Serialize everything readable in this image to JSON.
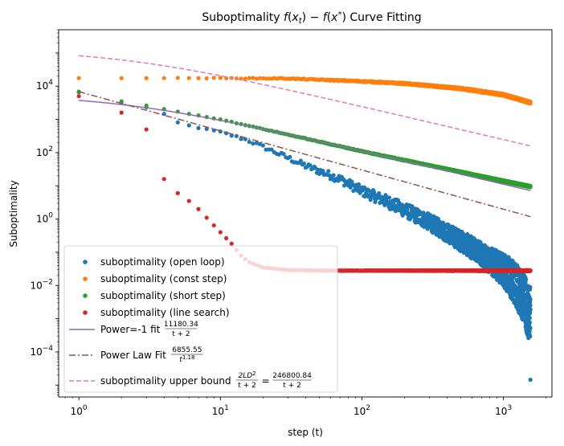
{
  "chart_data": {
    "type": "scatter",
    "title": "Suboptimality f(x_t) − f(x*) Curve Fitting",
    "title_parts": {
      "prefix": "Suboptimality ",
      "f1": "f",
      "x1": "x",
      "t1": "t",
      "minus": "− ",
      "f2": "f",
      "x2": "x",
      "star": "*",
      "suffix": " Curve Fitting"
    },
    "xlabel": "step (t)",
    "ylabel": "Suboptimality",
    "xscale": "log",
    "yscale": "log",
    "xlim": [
      0.72,
      2200
    ],
    "ylim": [
      4.4e-06,
      500000
    ],
    "grid": false,
    "legend_position": "lower-left",
    "x_ticks": [
      {
        "value": 1,
        "base": "10",
        "exp": "0"
      },
      {
        "value": 10,
        "base": "10",
        "exp": "1"
      },
      {
        "value": 100,
        "base": "10",
        "exp": "2"
      },
      {
        "value": 1000,
        "base": "10",
        "exp": "3"
      }
    ],
    "y_ticks": [
      {
        "value": 0.0001,
        "base": "10",
        "exp": "−4"
      },
      {
        "value": 0.01,
        "base": "10",
        "exp": "−2"
      },
      {
        "value": 1,
        "base": "10",
        "exp": "0"
      },
      {
        "value": 100,
        "base": "10",
        "exp": "2"
      },
      {
        "value": 10000,
        "base": "10",
        "exp": "4"
      }
    ],
    "t_max": 1550,
    "series": [
      {
        "key": "open",
        "name": "suboptimality (open loop)",
        "marker": "dot",
        "color": "#1f77b4",
        "anchors": [
          [
            1,
            6500
          ],
          [
            2,
            3200
          ],
          [
            3,
            2300
          ],
          [
            4,
            1400
          ],
          [
            5,
            800
          ],
          [
            6,
            650
          ],
          [
            8,
            500
          ],
          [
            10,
            420
          ],
          [
            15,
            250
          ],
          [
            20,
            150
          ],
          [
            30,
            70
          ],
          [
            40,
            40
          ],
          [
            50,
            28
          ],
          [
            70,
            16
          ],
          [
            100,
            7
          ],
          [
            150,
            3.4
          ],
          [
            200,
            1.9
          ],
          [
            300,
            0.8
          ],
          [
            500,
            0.22
          ],
          [
            700,
            0.09
          ],
          [
            1000,
            0.03
          ],
          [
            1200,
            0.012
          ],
          [
            1400,
            0.004
          ],
          [
            1500,
            0.0015
          ]
        ],
        "spread": [
          [
            10,
            0.02
          ],
          [
            30,
            0.08
          ],
          [
            100,
            0.15
          ],
          [
            300,
            0.25
          ],
          [
            700,
            0.35
          ],
          [
            1000,
            0.5
          ],
          [
            1500,
            0.8
          ]
        ],
        "outlier": [
          1550,
          1.45e-05
        ]
      },
      {
        "key": "const",
        "name": "suboptimality (const step)",
        "marker": "dot",
        "color": "#ff7f0e",
        "anchors": [
          [
            1,
            17500
          ],
          [
            3,
            17500
          ],
          [
            10,
            17500
          ],
          [
            30,
            17000
          ],
          [
            100,
            14000
          ],
          [
            200,
            12000
          ],
          [
            500,
            8500
          ],
          [
            1000,
            5500
          ],
          [
            1550,
            3200
          ]
        ],
        "spread": [
          [
            1,
            0.0
          ],
          [
            1550,
            0.03
          ]
        ]
      },
      {
        "key": "short",
        "name": "suboptimality (short step)",
        "marker": "dot",
        "color": "#2ca02c",
        "anchors": [
          [
            1,
            6800
          ],
          [
            2,
            3500
          ],
          [
            3,
            2600
          ],
          [
            5,
            1700
          ],
          [
            10,
            1000
          ],
          [
            100,
            110
          ],
          [
            1000,
            14
          ],
          [
            1550,
            9.5
          ]
        ],
        "spread": [
          [
            1,
            0.0
          ],
          [
            1550,
            0.02
          ]
        ]
      },
      {
        "key": "line",
        "name": "suboptimality (line search)",
        "marker": "dot",
        "color": "#d62728",
        "anchors": [
          [
            1,
            5000
          ],
          [
            2,
            1600
          ],
          [
            3,
            500
          ],
          [
            4,
            16
          ],
          [
            5,
            6
          ],
          [
            6,
            3.5
          ],
          [
            7,
            2
          ],
          [
            8,
            1.1
          ],
          [
            9,
            0.65
          ],
          [
            10,
            0.4
          ],
          [
            12,
            0.18
          ],
          [
            14,
            0.08
          ],
          [
            16,
            0.05
          ],
          [
            20,
            0.035
          ],
          [
            30,
            0.029
          ],
          [
            60,
            0.028
          ],
          [
            1550,
            0.028
          ]
        ],
        "spread": [
          [
            1,
            0.0
          ],
          [
            1550,
            0.01
          ]
        ]
      },
      {
        "key": "fit1",
        "name": "Power=-1 fit",
        "formula": {
          "num": "11180.34",
          "den": "t + 2"
        },
        "line": "solid",
        "color": "#9467bd",
        "coef": 11180.34,
        "power": -1
      },
      {
        "key": "fit2",
        "name": "Power Law Fit",
        "formula": {
          "num": "6855.55",
          "den": "t",
          "den_exp": "1.18"
        },
        "line": "dashdot",
        "color": "#8c564b",
        "coef": 6855.55,
        "power": -1.18
      },
      {
        "key": "bound",
        "name": "suboptimality upper bound",
        "formula": {
          "num1": "2LD",
          "num1_sup": "2",
          "den1": "t + 2",
          "eq": "=",
          "num2": "246800.84",
          "den2": "t + 2"
        },
        "line": "dashed",
        "color": "#e377c2",
        "coef": 246800.84,
        "power": -1
      }
    ]
  }
}
